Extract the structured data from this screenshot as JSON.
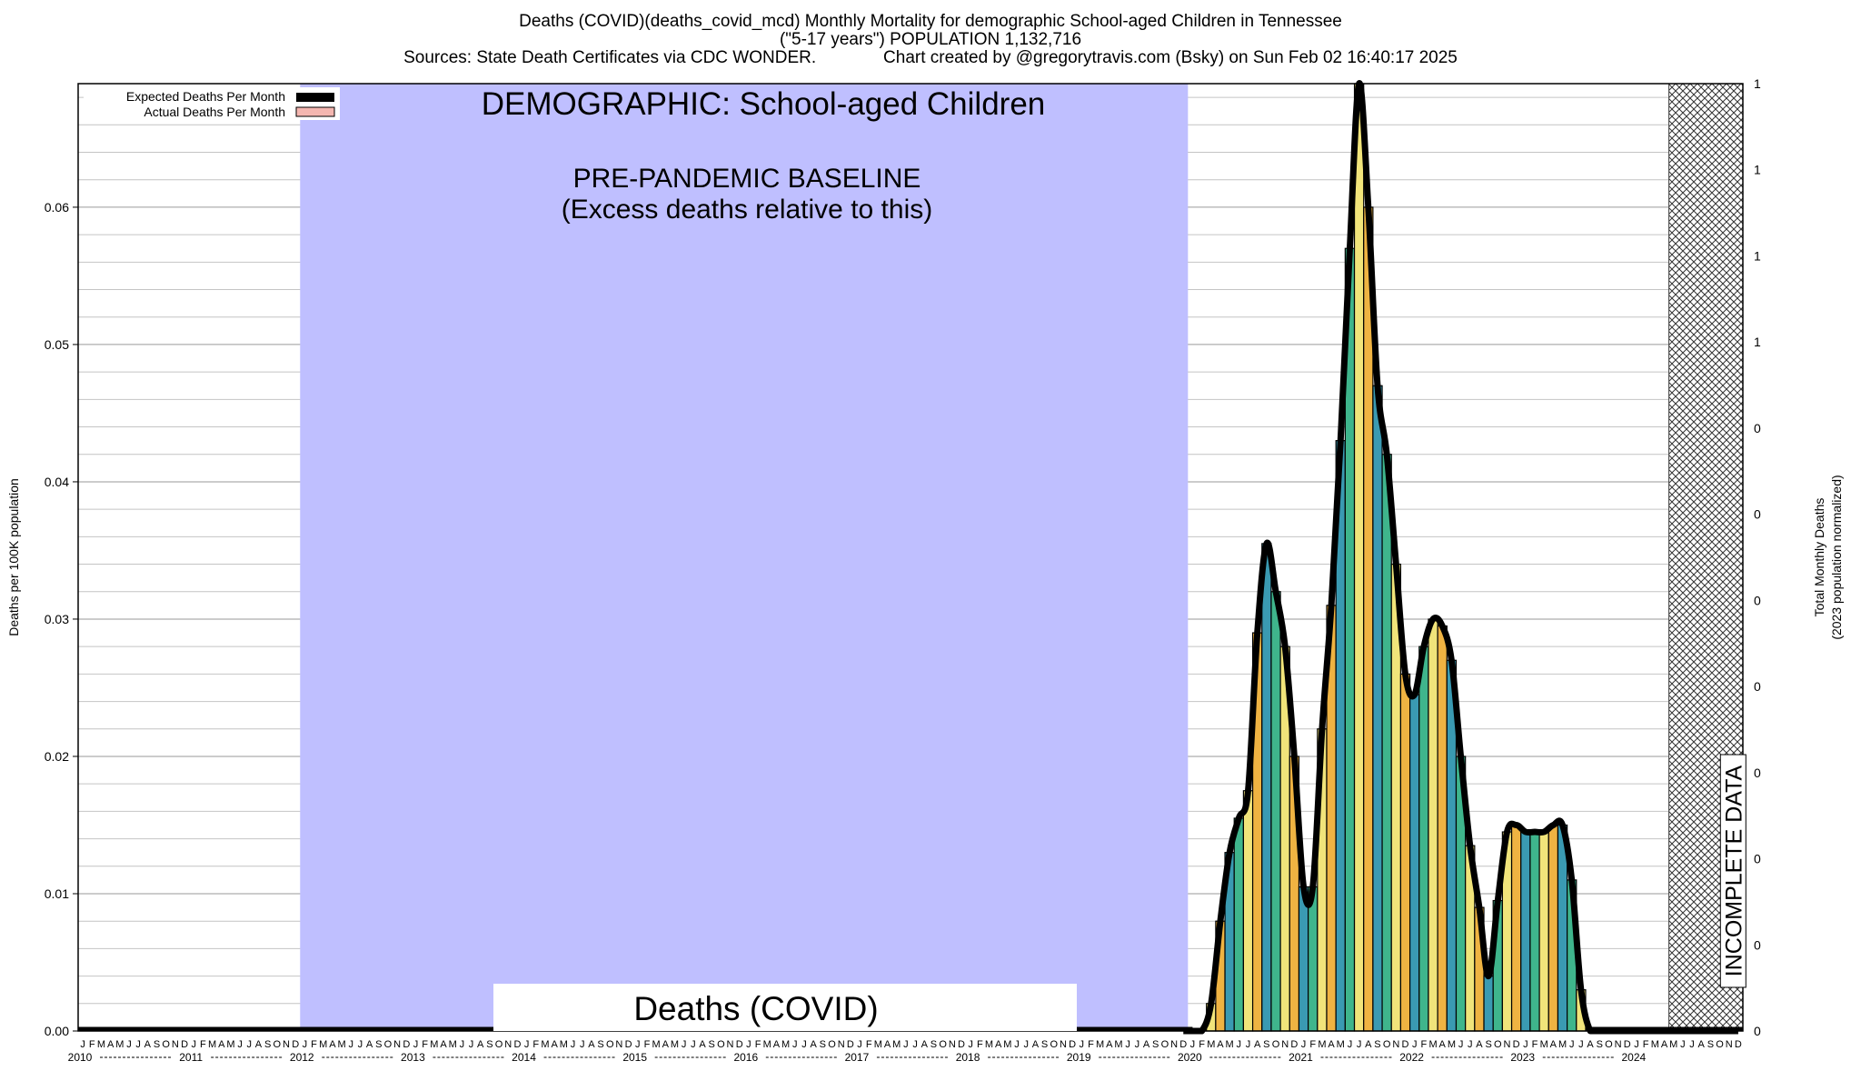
{
  "header": {
    "line1": "Deaths (COVID)(deaths_covid_mcd) Monthly Mortality for demographic School-aged Children in Tennessee",
    "line2": "(\"5-17 years\") POPULATION 1,132,716",
    "line3": "Sources: State Death Certificates via CDC WONDER.              Chart created by @gregorytravis.com (Bsky) on Sun Feb 02 16:40:17 2025"
  },
  "chart_data": {
    "type": "bar",
    "ylabel": "Deaths per 100K population",
    "ylabel_right_1": "Total Monthly Deaths",
    "ylabel_right_2": "(2023 population normalized)",
    "ylim": [
      0,
      0.069
    ],
    "yticks": [
      "0.00",
      "0.01",
      "0.02",
      "0.03",
      "0.04",
      "0.05",
      "0.06"
    ],
    "right_ticks": [
      "0",
      "0",
      "0",
      "0",
      "0",
      "0",
      "0",
      "0",
      "1",
      "1",
      "1",
      "1"
    ],
    "grid": true,
    "years": [
      "2010",
      "2011",
      "2012",
      "2013",
      "2014",
      "2015",
      "2016",
      "2017",
      "2018",
      "2019",
      "2020",
      "2021",
      "2022",
      "2023",
      "2024"
    ],
    "month_letters": [
      "J",
      "F",
      "M",
      "A",
      "M",
      "J",
      "J",
      "A",
      "S",
      "O",
      "N",
      "D"
    ],
    "legend": {
      "position": "top-left",
      "expected": "Expected Deaths Per Month",
      "actual": "Actual Deaths Per Month",
      "expected_color": "#000000",
      "actual_color": "#f4b6b0"
    },
    "demographic_label": "DEMOGRAPHIC: School-aged Children",
    "baseline_label_1": "PRE-PANDEMIC BASELINE",
    "baseline_label_2": "(Excess deaths relative to this)",
    "cause_label": "Deaths (COVID)",
    "incomplete_label": "INCOMPLETE DATA",
    "baseline_color": "#bfbfff",
    "baseline_range": [
      "2012-01",
      "2019-12"
    ],
    "incomplete_range": [
      "2024-05",
      "2024-12"
    ],
    "bar_colors": [
      "#3a9ab2",
      "#3fb58c",
      "#f1e47a",
      "#efb342"
    ],
    "series": [
      {
        "name": "Actual Deaths Per Month",
        "start": "2020-01",
        "months": [
          "2020-01",
          "2020-02",
          "2020-03",
          "2020-04",
          "2020-05",
          "2020-06",
          "2020-07",
          "2020-08",
          "2020-09",
          "2020-10",
          "2020-11",
          "2020-12",
          "2021-01",
          "2021-02",
          "2021-03",
          "2021-04",
          "2021-05",
          "2021-06",
          "2021-07",
          "2021-08",
          "2021-09",
          "2021-10",
          "2021-11",
          "2021-12",
          "2022-01",
          "2022-02",
          "2022-03",
          "2022-04",
          "2022-05",
          "2022-06",
          "2022-07",
          "2022-08",
          "2022-09",
          "2022-10",
          "2022-11",
          "2022-12",
          "2023-01",
          "2023-02",
          "2023-03",
          "2023-04",
          "2023-05",
          "2023-06",
          "2023-07",
          "2023-08",
          "2023-09",
          "2023-10",
          "2023-11",
          "2023-12",
          "2024-01",
          "2024-02",
          "2024-03",
          "2024-04",
          "2024-05",
          "2024-06",
          "2024-07",
          "2024-08",
          "2024-09",
          "2024-10",
          "2024-11",
          "2024-12"
        ],
        "values": [
          0,
          0,
          0.002,
          0.008,
          0.013,
          0.0155,
          0.0175,
          0.029,
          0.0355,
          0.032,
          0.028,
          0.02,
          0.0105,
          0.0105,
          0.022,
          0.031,
          0.043,
          0.057,
          0.069,
          0.06,
          0.047,
          0.042,
          0.034,
          0.026,
          0.0245,
          0.028,
          0.03,
          0.0295,
          0.027,
          0.02,
          0.0135,
          0.009,
          0.004,
          0.0095,
          0.0145,
          0.015,
          0.0145,
          0.0145,
          0.0145,
          0.015,
          0.015,
          0.011,
          0.003,
          0,
          0,
          0,
          0,
          0,
          0,
          0,
          0,
          0,
          0,
          0,
          0,
          0,
          0,
          0,
          0,
          0
        ]
      },
      {
        "name": "Expected Deaths Per Month",
        "note": "",
        "value": 0
      }
    ]
  }
}
